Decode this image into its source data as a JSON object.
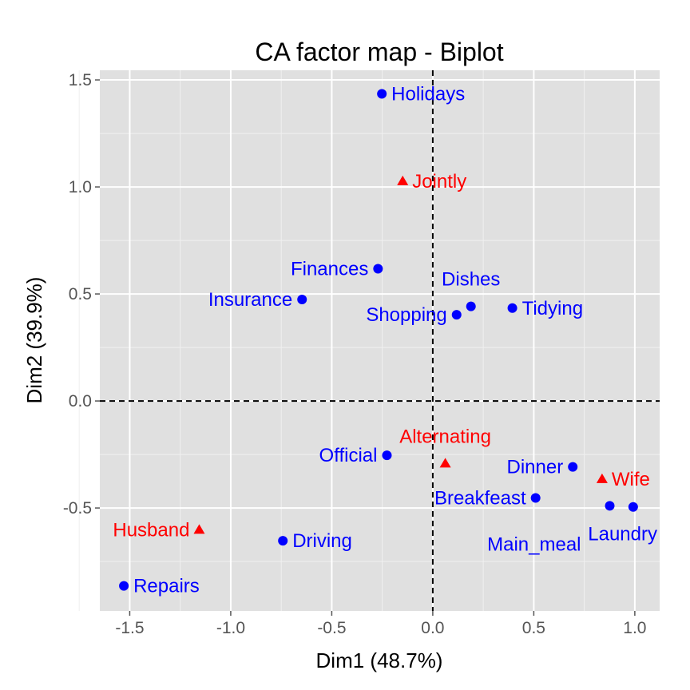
{
  "chart_data": {
    "type": "scatter",
    "title": "CA factor map - Biplot",
    "xlabel": "Dim1 (48.7%)",
    "ylabel": "Dim2 (39.9%)",
    "xlim": [
      -1.648,
      1.123
    ],
    "ylim": [
      -0.981,
      1.545
    ],
    "xticks": [
      -1.5,
      -1.0,
      -0.5,
      0.0,
      0.5,
      1.0
    ],
    "xtick_labels": [
      "-1.5",
      "-1.0",
      "-0.5",
      "0.0",
      "0.5",
      "1.0"
    ],
    "yticks": [
      -0.5,
      0.0,
      0.5,
      1.0,
      1.5
    ],
    "ytick_labels": [
      "-0.5",
      "0.0",
      "0.5",
      "1.0",
      "1.5"
    ],
    "grid": true,
    "background": "#E0E0E0",
    "series": [
      {
        "color": "#0000FF",
        "marker": "circle",
        "points": [
          {
            "label": "Laundry",
            "x": 0.992,
            "y": -0.495
          },
          {
            "label": "Main_meal",
            "x": 0.876,
            "y": -0.49
          },
          {
            "label": "Dinner",
            "x": 0.693,
            "y": -0.308
          },
          {
            "label": "Breakfeast",
            "x": 0.509,
            "y": -0.453
          },
          {
            "label": "Tidying",
            "x": 0.394,
            "y": 0.434
          },
          {
            "label": "Dishes",
            "x": 0.189,
            "y": 0.442
          },
          {
            "label": "Shopping",
            "x": 0.118,
            "y": 0.403
          },
          {
            "label": "Official",
            "x": -0.227,
            "y": -0.254
          },
          {
            "label": "Driving",
            "x": -0.742,
            "y": -0.653
          },
          {
            "label": "Finances",
            "x": -0.271,
            "y": 0.618
          },
          {
            "label": "Insurance",
            "x": -0.647,
            "y": 0.474
          },
          {
            "label": "Repairs",
            "x": -1.529,
            "y": -0.864
          },
          {
            "label": "Holidays",
            "x": -0.252,
            "y": 1.435
          }
        ]
      },
      {
        "color": "#FF0000",
        "marker": "triangle",
        "points": [
          {
            "label": "Wife",
            "x": 0.838,
            "y": -0.365
          },
          {
            "label": "Alternating",
            "x": 0.062,
            "y": -0.292
          },
          {
            "label": "Husband",
            "x": -1.156,
            "y": -0.602
          },
          {
            "label": "Jointly",
            "x": -0.149,
            "y": 1.027
          }
        ]
      }
    ]
  }
}
